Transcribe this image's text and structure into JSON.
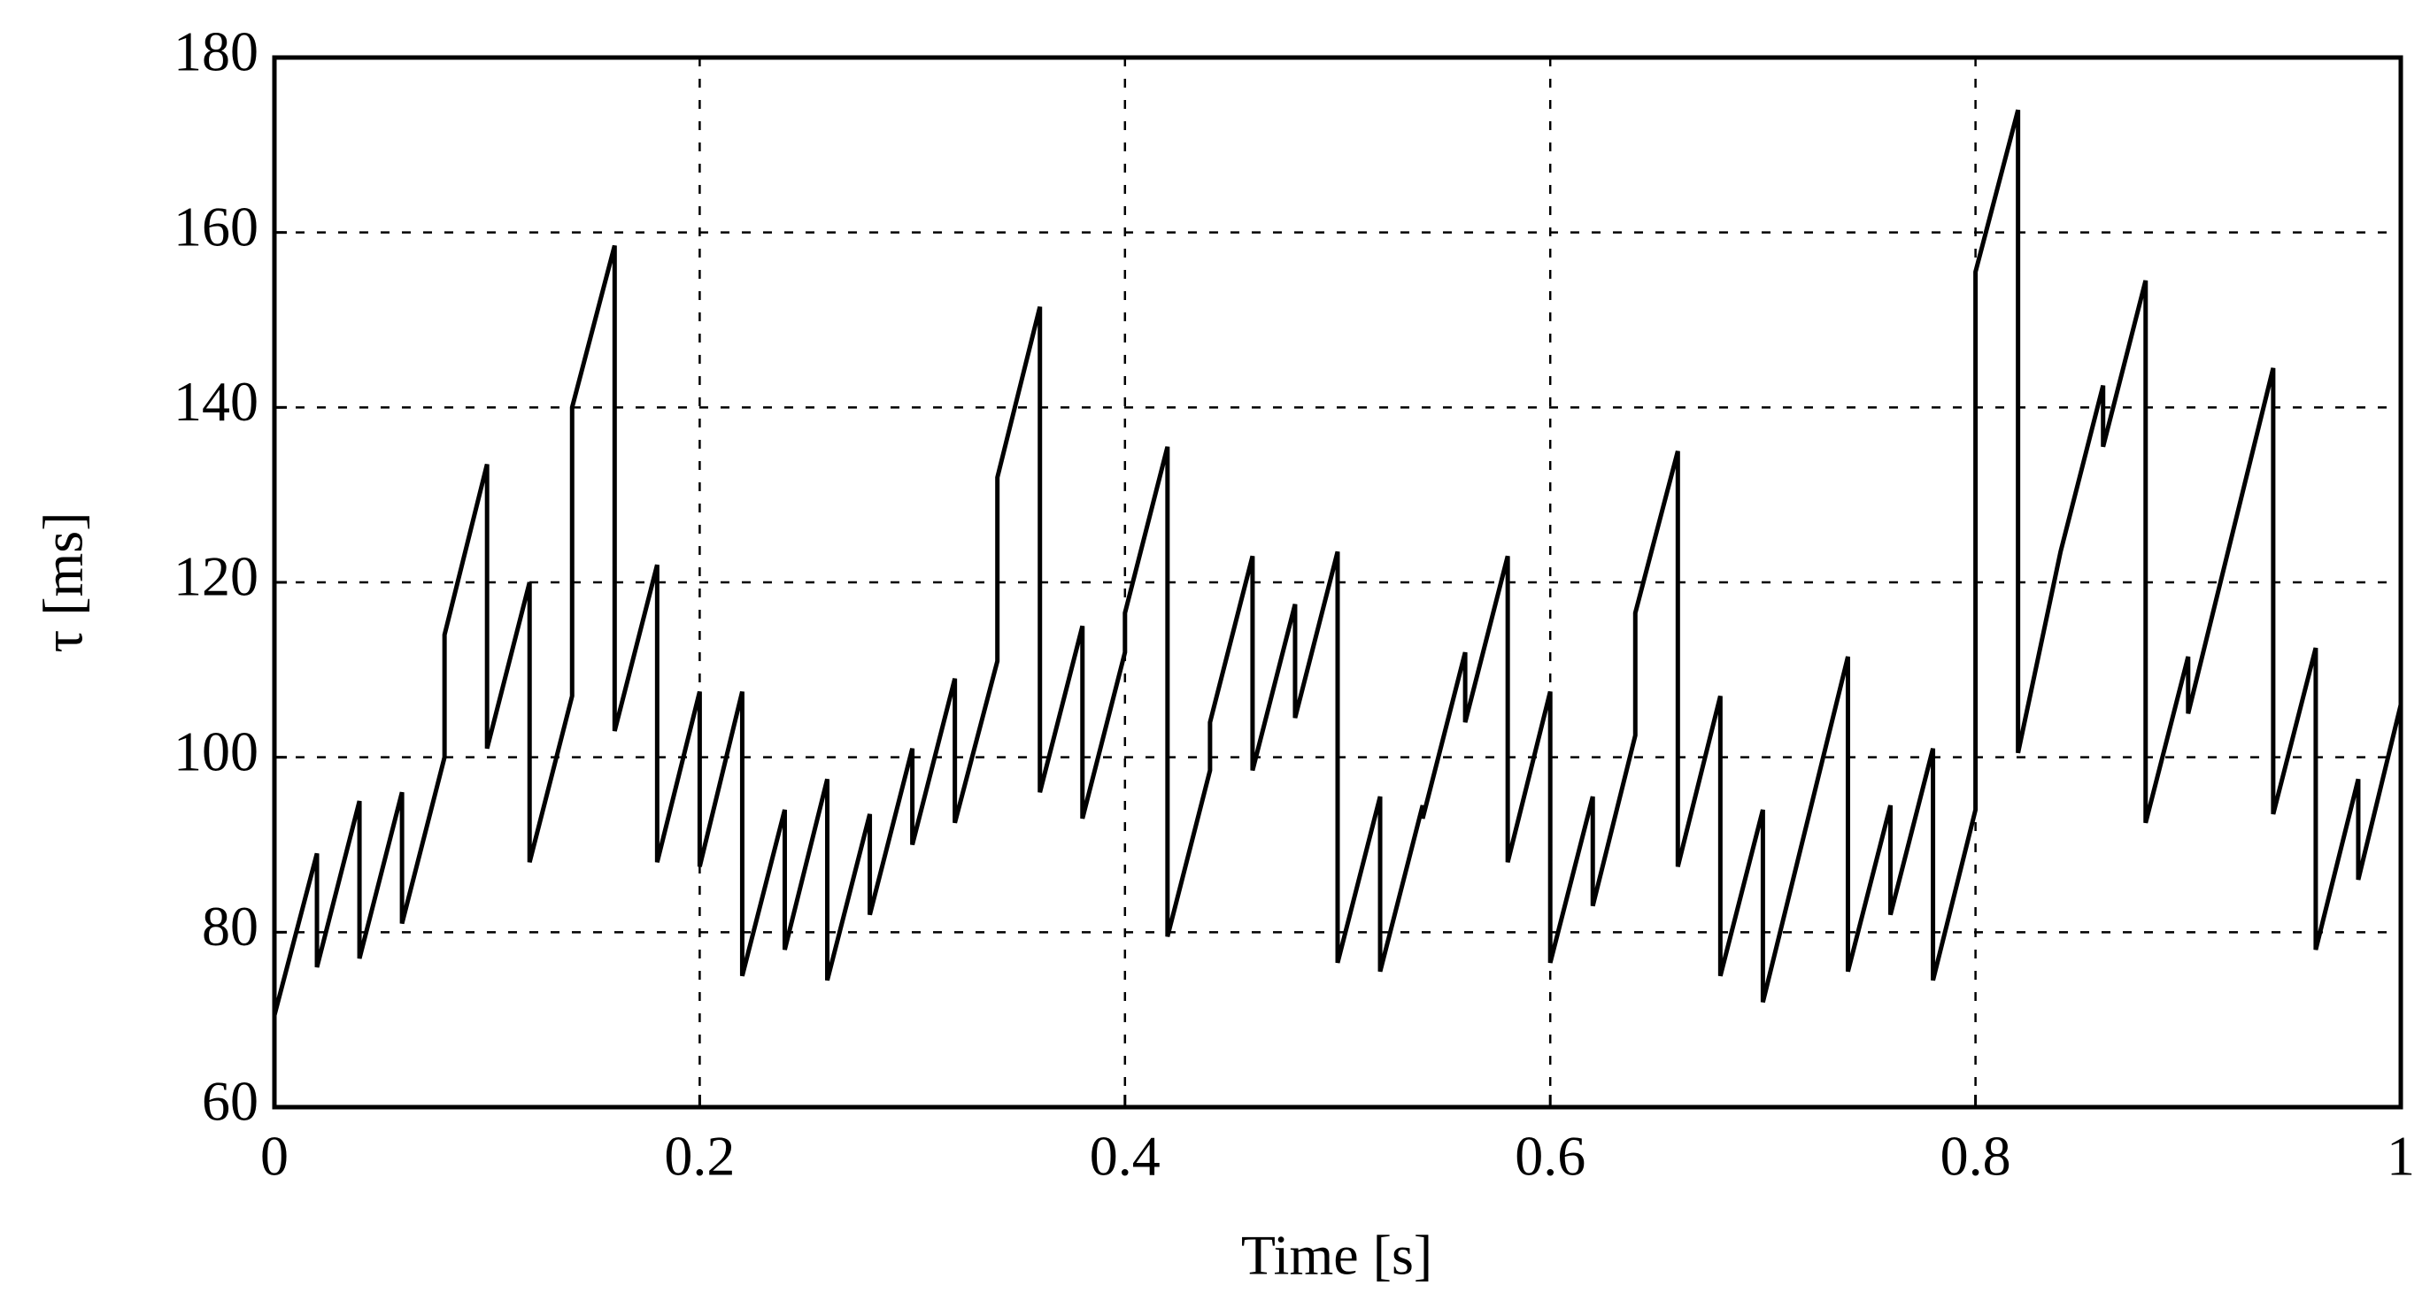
{
  "chart_data": {
    "type": "line",
    "xlabel": "Time [s]",
    "ylabel": "τ [ms]",
    "x": [
      0,
      0.02,
      0.02,
      0.04,
      0.04,
      0.06,
      0.06,
      0.08,
      0.08,
      0.1,
      0.1,
      0.12,
      0.12,
      0.14,
      0.14,
      0.16,
      0.16,
      0.18,
      0.18,
      0.2,
      0.2,
      0.22,
      0.22,
      0.24,
      0.24,
      0.26,
      0.26,
      0.28,
      0.28,
      0.3,
      0.3,
      0.32,
      0.32,
      0.34,
      0.34,
      0.36,
      0.36,
      0.38,
      0.38,
      0.4,
      0.4,
      0.42,
      0.42,
      0.44,
      0.44,
      0.46,
      0.46,
      0.48,
      0.48,
      0.5,
      0.5,
      0.52,
      0.52,
      0.54,
      0.54,
      0.56,
      0.56,
      0.58,
      0.58,
      0.6,
      0.6,
      0.62,
      0.62,
      0.64,
      0.64,
      0.66,
      0.66,
      0.68,
      0.68,
      0.7,
      0.7,
      0.74,
      0.74,
      0.76,
      0.76,
      0.78,
      0.78,
      0.8,
      0.8,
      0.82,
      0.82,
      0.84,
      0.86,
      0.86,
      0.88,
      0.88,
      0.9,
      0.9,
      0.94,
      0.94,
      0.96,
      0.96,
      0.98,
      0.98,
      1
    ],
    "values": [
      70.5,
      89,
      76,
      95,
      77,
      96,
      81,
      100,
      114,
      133.5,
      101,
      120,
      88,
      107,
      140,
      158.5,
      103,
      122,
      88,
      107.5,
      87.5,
      107.5,
      75,
      94,
      78,
      97.5,
      74.5,
      93.5,
      82,
      101,
      90,
      109,
      92.5,
      111,
      132,
      151.5,
      96,
      115,
      93,
      112,
      116.5,
      135.5,
      79.5,
      98.5,
      104,
      123,
      98.5,
      117.5,
      104.5,
      123.5,
      76.5,
      95.5,
      75.5,
      94.5,
      93,
      112,
      104,
      123,
      88,
      107.5,
      76.5,
      95.5,
      83,
      102.5,
      116.5,
      135,
      87.5,
      107,
      75,
      94,
      72,
      111.5,
      75.5,
      94.5,
      82,
      101,
      74.5,
      94,
      155.5,
      174,
      100.5,
      123.5,
      142.5,
      135.5,
      154.5,
      92.5,
      111.5,
      105,
      144.5,
      93.5,
      112.5,
      78,
      97.5,
      86,
      106
    ],
    "color": "#000000",
    "xlim": [
      0,
      1
    ],
    "ylim": [
      60,
      180
    ],
    "xticks": [
      0,
      0.2,
      0.4,
      0.6,
      0.8,
      1
    ],
    "yticks": [
      60,
      80,
      100,
      120,
      140,
      160,
      180
    ],
    "grid": true
  }
}
